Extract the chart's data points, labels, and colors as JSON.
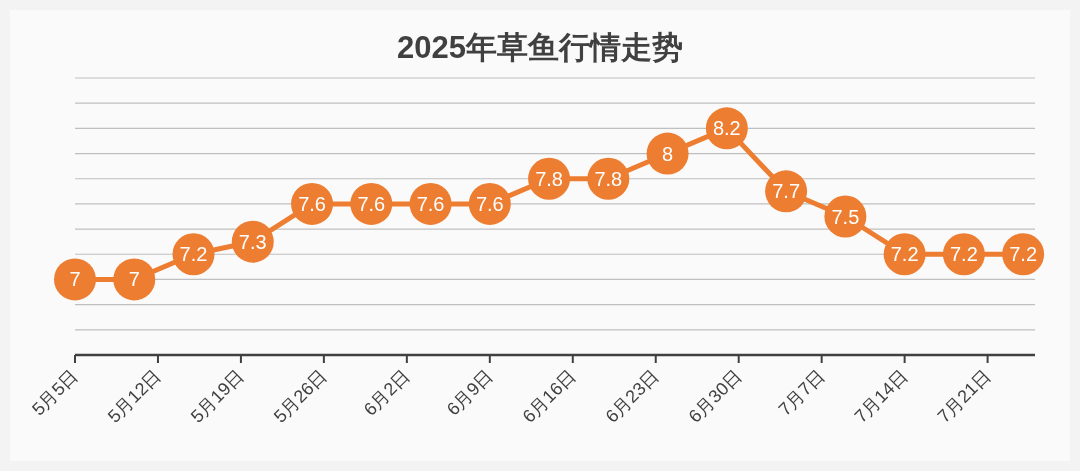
{
  "chart_data": {
    "type": "line",
    "title": "2025年草鱼行情走势",
    "x": [
      "2025-05-05",
      "2025-05-10",
      "2025-05-15",
      "2025-05-20",
      "2025-05-25",
      "2025-05-30",
      "2025-06-04",
      "2025-06-09",
      "2025-06-14",
      "2025-06-19",
      "2025-06-24",
      "2025-06-29",
      "2025-07-04",
      "2025-07-09",
      "2025-07-14",
      "2025-07-19",
      "2025-07-24"
    ],
    "values": [
      7,
      7,
      7.2,
      7.3,
      7.6,
      7.6,
      7.6,
      7.6,
      7.8,
      7.8,
      8,
      8.2,
      7.7,
      7.5,
      7.2,
      7.2,
      7.2
    ],
    "color": "#ed7d31",
    "marker": "circle",
    "data_labels": true,
    "xlim": [
      "2025-05-05",
      "2025-07-25"
    ],
    "xticks": [
      {
        "value": "2025-05-05",
        "label": "5月5日"
      },
      {
        "value": "2025-05-12",
        "label": "5月12日"
      },
      {
        "value": "2025-05-19",
        "label": "5月19日"
      },
      {
        "value": "2025-05-26",
        "label": "5月26日"
      },
      {
        "value": "2025-06-02",
        "label": "6月2日"
      },
      {
        "value": "2025-06-09",
        "label": "6月9日"
      },
      {
        "value": "2025-06-16",
        "label": "6月16日"
      },
      {
        "value": "2025-06-23",
        "label": "6月23日"
      },
      {
        "value": "2025-06-30",
        "label": "6月30日"
      },
      {
        "value": "2025-07-07",
        "label": "7月7日"
      },
      {
        "value": "2025-07-14",
        "label": "7月14日"
      },
      {
        "value": "2025-07-21",
        "label": "7月21日"
      }
    ],
    "ylim": [
      6.4,
      8.6
    ],
    "yticks": [
      {
        "value": 6.4,
        "label": null
      },
      {
        "value": 6.6,
        "label": null
      },
      {
        "value": 6.8,
        "label": null
      },
      {
        "value": 7,
        "label": null
      },
      {
        "value": 7.2,
        "label": null
      },
      {
        "value": 7.4,
        "label": null
      },
      {
        "value": 7.6,
        "label": null
      },
      {
        "value": 7.8,
        "label": null
      },
      {
        "value": 8,
        "label": null
      },
      {
        "value": 8.2,
        "label": null
      },
      {
        "value": 8.4,
        "label": null
      },
      {
        "value": 8.6,
        "label": null
      }
    ],
    "grid": "y",
    "tick_labels": "x"
  }
}
